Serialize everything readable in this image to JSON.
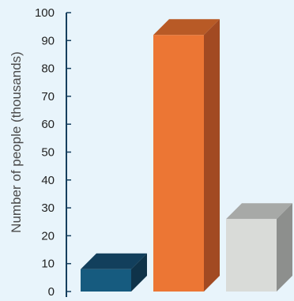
{
  "chart_data": {
    "type": "bar",
    "ylabel": "Number of people (thousands)",
    "ylim": [
      0,
      100
    ],
    "y_ticks": [
      0,
      10,
      20,
      30,
      40,
      50,
      60,
      70,
      80,
      90,
      100
    ],
    "categories": [
      "",
      "",
      ""
    ],
    "values": [
      8,
      92,
      26
    ],
    "colors": [
      {
        "front": "#165b7f",
        "top": "#123f5c",
        "side": "#0f3349"
      },
      {
        "front": "#ec7634",
        "top": "#b85a26",
        "side": "#a24a22"
      },
      {
        "front": "#d9dbd8",
        "top": "#a7a9a7",
        "side": "#8d8f8d"
      }
    ],
    "axis_color": "#163f5e",
    "grid": false
  }
}
